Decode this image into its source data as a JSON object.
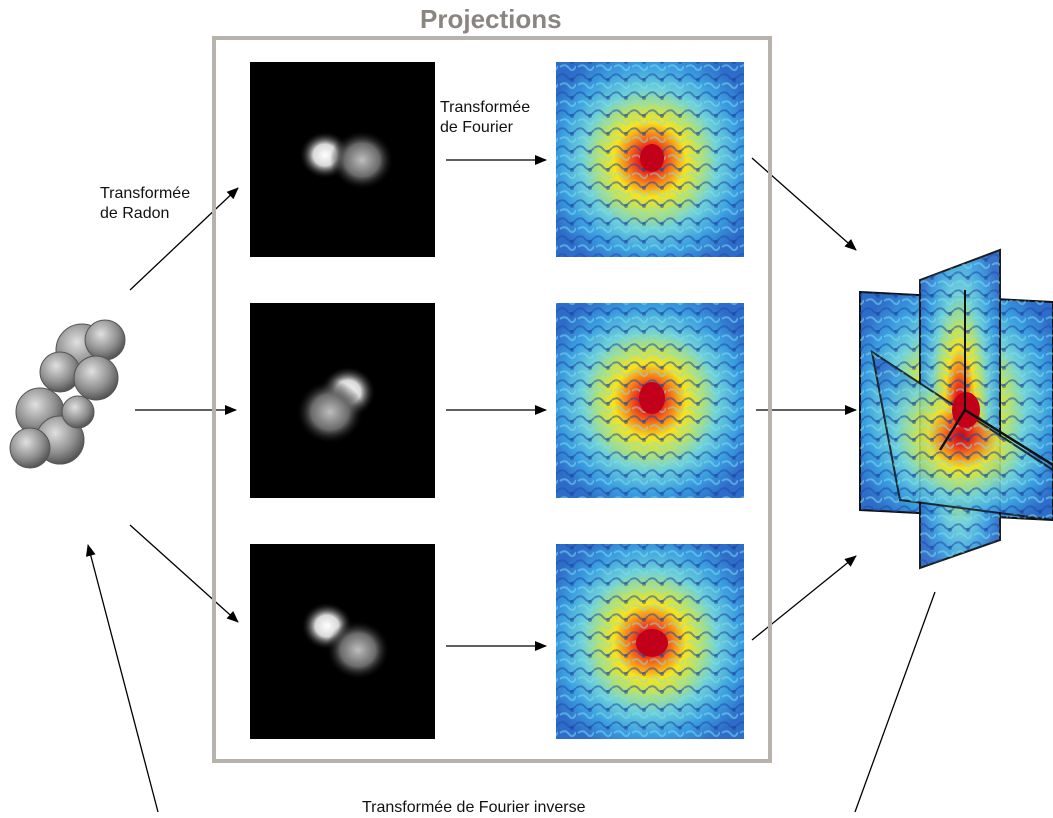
{
  "title": "Projections",
  "labels": {
    "radon_line1": "Transformée",
    "radon_line2": "de Radon",
    "fourier_line1": "Transformée",
    "fourier_line2": "de Fourier",
    "inverse": "Transformée de Fourier inverse"
  },
  "colors": {
    "frame": "#b8b2ac",
    "title": "#8a8580",
    "projection_bg": "#000000",
    "spectrum_low": "#2e7fd1",
    "spectrum_mid": "#f6e21a",
    "spectrum_high": "#d01c1c",
    "molecule": "#9a9a9a"
  },
  "icons": {
    "molecule": "protein-surface-icon",
    "projection": "projection-image",
    "spectrum": "fourier-spectrum-image",
    "volume": "fourier-volume-slices"
  }
}
